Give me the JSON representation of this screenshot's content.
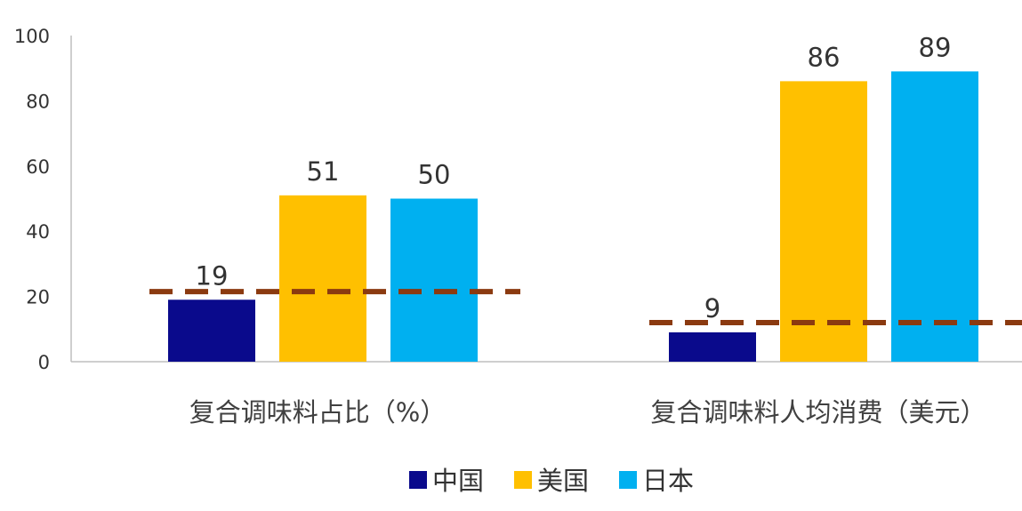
{
  "chart_data": {
    "type": "bar",
    "categories": [
      "复合调味料占比（%）",
      "复合调味料人均消费（美元）"
    ],
    "series": [
      {
        "name": "中国",
        "values": [
          19,
          9
        ],
        "color": "#0a0a8c"
      },
      {
        "name": "美国",
        "values": [
          51,
          86
        ],
        "color": "#ffc000"
      },
      {
        "name": "日本",
        "values": [
          50,
          89
        ],
        "color": "#00b0f0"
      }
    ],
    "data_labels": [
      [
        "19",
        "9"
      ],
      [
        "51",
        "86"
      ],
      [
        "50",
        "89"
      ]
    ],
    "yticks": [
      "0",
      "20",
      "40",
      "60",
      "80",
      "100"
    ],
    "ylim": [
      0,
      100
    ],
    "reference_lines": [
      21.5,
      12
    ],
    "reference_line_color": "#8b3a10",
    "grid": false,
    "legend_position": "bottom-center"
  }
}
